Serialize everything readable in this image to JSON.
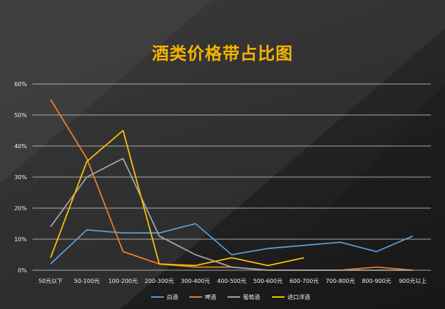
{
  "chart_data": {
    "type": "line",
    "title": "酒类价格带占比图",
    "xlabel": "",
    "ylabel": "",
    "categories": [
      "50元以下",
      "50-100元",
      "100-200元",
      "200-300元",
      "300-400元",
      "400-500元",
      "500-600元",
      "600-700元",
      "700-800元",
      "800-900元",
      "900元以上"
    ],
    "yticks": [
      "0%",
      "10%",
      "20%",
      "30%",
      "40%",
      "50%",
      "60%"
    ],
    "ylim": [
      0,
      60
    ],
    "grid": true,
    "legend_position": "bottom",
    "series": [
      {
        "name": "白酒",
        "color": "#5b9bd5",
        "values": [
          2,
          13,
          12,
          12,
          15,
          5,
          7,
          8,
          9,
          6,
          11
        ]
      },
      {
        "name": "啤酒",
        "color": "#ed7d31",
        "values": [
          55,
          36,
          6,
          2,
          1,
          1,
          0,
          0,
          0,
          1,
          0
        ]
      },
      {
        "name": "葡萄酒",
        "color": "#a5a5a5",
        "values": [
          14,
          30,
          36,
          11,
          5,
          1,
          0,
          0,
          0,
          0,
          0
        ]
      },
      {
        "name": "进口洋酒",
        "color": "#ffc000",
        "values": [
          4,
          35,
          45,
          2,
          1.5,
          4,
          1.5,
          4,
          null,
          null,
          null
        ]
      }
    ]
  }
}
